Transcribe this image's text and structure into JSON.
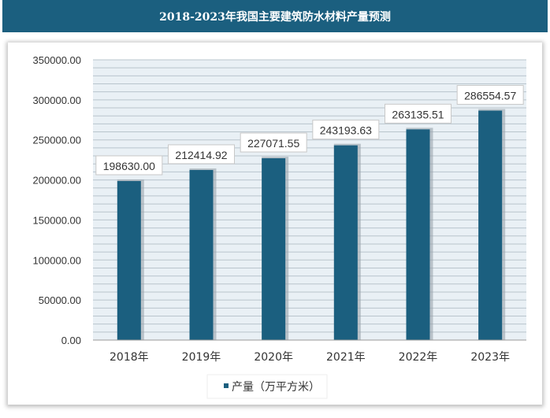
{
  "chart_data": {
    "type": "bar",
    "title": "2018-2023年我国主要建筑防水材料产量预测",
    "categories": [
      "2018年",
      "2019年",
      "2020年",
      "2021年",
      "2022年",
      "2023年"
    ],
    "series": [
      {
        "name": "产量（万平方米）",
        "values": [
          198630.0,
          212414.92,
          227071.55,
          243193.63,
          263135.51,
          286554.57
        ],
        "labels": [
          "198630.00",
          "212414.92",
          "227071.55",
          "243193.63",
          "263135.51",
          "286554.57"
        ]
      }
    ],
    "yticks": [
      "0.00",
      "50000.00",
      "100000.00",
      "150000.00",
      "200000.00",
      "250000.00",
      "300000.00",
      "350000.00"
    ],
    "ylim": [
      0,
      350000
    ],
    "grid": true,
    "legend": "bottom",
    "colors": {
      "bar": "#1b5f7f",
      "title_bg": "#1b5f7f",
      "plot_bg": "#e9f0f5"
    }
  }
}
